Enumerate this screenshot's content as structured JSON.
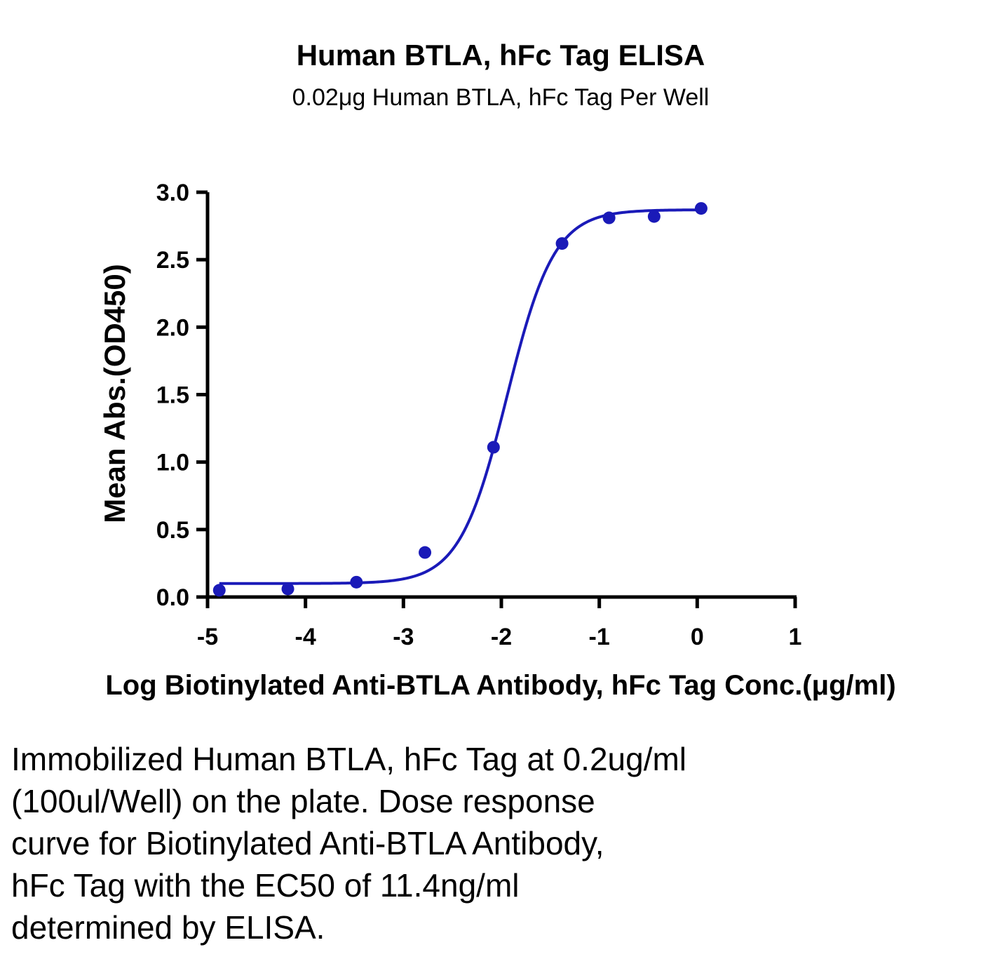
{
  "chart_data": {
    "type": "scatter",
    "title": "Human BTLA, hFc Tag ELISA",
    "subtitle": "0.02μg Human BTLA, hFc Tag Per Well",
    "xlabel": "Log Biotinylated Anti-BTLA Antibody, hFc Tag Conc.(μg/ml)",
    "ylabel": "Mean Abs.(OD450)",
    "xlim": [
      -5,
      1
    ],
    "ylim": [
      0,
      3
    ],
    "x_ticks": [
      {
        "value": -5,
        "label": "-5"
      },
      {
        "value": -4,
        "label": "-4"
      },
      {
        "value": -3,
        "label": "-3"
      },
      {
        "value": -2,
        "label": "-2"
      },
      {
        "value": -1,
        "label": "-1"
      },
      {
        "value": 0,
        "label": "0"
      },
      {
        "value": 1,
        "label": "1"
      }
    ],
    "y_ticks": [
      {
        "value": 0.0,
        "label": "0.0"
      },
      {
        "value": 0.5,
        "label": "0.5"
      },
      {
        "value": 1.0,
        "label": "1.0"
      },
      {
        "value": 1.5,
        "label": "1.5"
      },
      {
        "value": 2.0,
        "label": "2.0"
      },
      {
        "value": 2.5,
        "label": "2.5"
      },
      {
        "value": 3.0,
        "label": "3.0"
      }
    ],
    "grid": false,
    "color": "#1a1ab8",
    "series": [
      {
        "points": [
          {
            "x": -4.88,
            "y": 0.05
          },
          {
            "x": -4.18,
            "y": 0.06
          },
          {
            "x": -3.48,
            "y": 0.11
          },
          {
            "x": -2.78,
            "y": 0.33
          },
          {
            "x": -2.08,
            "y": 1.11
          },
          {
            "x": -1.38,
            "y": 2.62
          },
          {
            "x": -0.9,
            "y": 2.81
          },
          {
            "x": -0.44,
            "y": 2.82
          },
          {
            "x": 0.04,
            "y": 2.88
          }
        ],
        "fit": {
          "model": "4PL",
          "bottom": 0.1,
          "top": 2.87,
          "logEC50": -1.943,
          "hill": 1.8,
          "x_range": [
            -4.88,
            0.04
          ]
        }
      }
    ]
  },
  "caption": {
    "lines": [
      "Immobilized Human BTLA, hFc Tag at 0.2ug/ml",
      "(100ul/Well) on the plate. Dose response",
      "curve for Biotinylated Anti-BTLA Antibody,",
      "hFc Tag with the EC50 of 11.4ng/ml",
      "determined by ELISA."
    ]
  }
}
